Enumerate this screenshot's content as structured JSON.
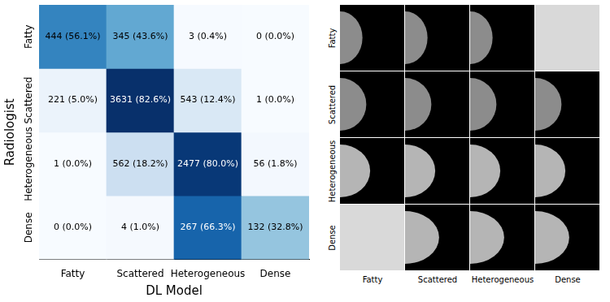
{
  "chart_data": {
    "type": "heatmap",
    "x_label": "DL Model",
    "y_label": "Radiologist",
    "x_categories": [
      "Fatty",
      "Scattered",
      "Heterogeneous",
      "Dense"
    ],
    "y_categories": [
      "Fatty",
      "Scattered",
      "Heterogeneous",
      "Dense"
    ],
    "values": [
      [
        444,
        345,
        3,
        0
      ],
      [
        221,
        3631,
        543,
        1
      ],
      [
        1,
        562,
        2477,
        56
      ],
      [
        0,
        4,
        267,
        132
      ]
    ],
    "value_labels": [
      [
        "444 (56.1%)",
        "345 (43.6%)",
        "3 (0.4%)",
        "0 (0.0%)"
      ],
      [
        "221 (5.0%)",
        "3631 (82.6%)",
        "543 (12.4%)",
        "1 (0.0%)"
      ],
      [
        "1 (0.0%)",
        "562 (18.2%)",
        "2477 (80.0%)",
        "56 (1.8%)"
      ],
      [
        "0 (0.0%)",
        "4 (1.0%)",
        "267 (66.3%)",
        "132 (32.8%)"
      ]
    ]
  },
  "image_grid": {
    "row_labels": [
      "Fatty",
      "Scattered",
      "Heterogeneous",
      "Dense"
    ],
    "column_labels": [
      "Fatty",
      "Scattered",
      "Heterogeneous",
      "Dense"
    ],
    "has_image": [
      [
        true,
        true,
        true,
        false
      ],
      [
        true,
        true,
        true,
        true
      ],
      [
        true,
        true,
        true,
        true
      ],
      [
        false,
        true,
        true,
        true
      ]
    ]
  }
}
